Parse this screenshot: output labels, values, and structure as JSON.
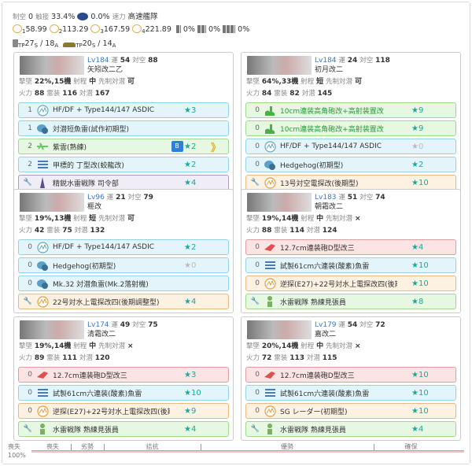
{
  "summary": {
    "air_label": "制空",
    "air": "0",
    "contact_label": "触接",
    "contact": "33.4%",
    "contact2": "0.0%",
    "speed_label": "速力",
    "speed": "高速艦隊",
    "los": [
      {
        "n": "1",
        "v": "58.99"
      },
      {
        "n": "2",
        "v": "113.29"
      },
      {
        "n": "3",
        "v": "167.59"
      },
      {
        "n": "4",
        "v": "221.89"
      }
    ],
    "drum": [
      "0%",
      "0%",
      "0%"
    ],
    "tp1": "27",
    "tp1s": "S",
    "tp1a": "18",
    "tp1b": "A",
    "tp2": "20",
    "tp2s": "S",
    "tp2a": "14",
    "tp2b": "A"
  },
  "labels": {
    "luck": "運",
    "aa": "対空",
    "shotdown": "撃墜",
    "range": "射程",
    "oasw": "先制対潜",
    "fp": "火力",
    "tp": "雷装",
    "asw": "対潜"
  },
  "ships": [
    {
      "lv": "Lv184",
      "luck": "54",
      "aa": "88",
      "name": "矢矧改二乙",
      "shot": "22%,15機",
      "range": "中",
      "oasw": "可",
      "fp": "88",
      "tp": "116",
      "asw": "167",
      "eq": [
        {
          "c": "1",
          "icon": "sonar-icon",
          "name": "HF/DF + Type144/147 ASDIC",
          "star": "★3",
          "t": "blue"
        },
        {
          "c": "1",
          "icon": "depth-charge-icon",
          "name": "対潜短魚雷(試作初期型)",
          "star": "",
          "t": "blue"
        },
        {
          "c": "2",
          "icon": "seaplane-icon",
          "name": "紫雲(熟練)",
          "star": "★2",
          "t": "green",
          "badge": "B",
          "prof": "》"
        },
        {
          "c": "2",
          "icon": "torpedo-icon",
          "name": "甲標的 丁型改(蛟龍改)",
          "star": "★2",
          "t": "blue"
        },
        {
          "c": "ex",
          "icon": "fleet-command-icon",
          "name": "精鋭水雷戦隊 司令部",
          "star": "★4",
          "t": "purple"
        }
      ]
    },
    {
      "lv": "Lv184",
      "luck": "24",
      "aa": "118",
      "name": "初月改二",
      "shot": "64%,33機",
      "range": "短",
      "oasw": "可",
      "fp": "84",
      "tp": "82",
      "asw": "145",
      "eq": [
        {
          "c": "0",
          "icon": "aa-gun-icon",
          "name": "10cm連装高角砲改+高射装置改",
          "star": "★9",
          "t": "green",
          "g": true
        },
        {
          "c": "0",
          "icon": "aa-gun-icon",
          "name": "10cm連装高角砲改+高射装置改",
          "star": "★9",
          "t": "green",
          "g": true
        },
        {
          "c": "0",
          "icon": "sonar-icon",
          "name": "HF/DF + Type144/147 ASDIC",
          "star": "★0",
          "t": "blue",
          "zero": true
        },
        {
          "c": "0",
          "icon": "depth-charge-icon",
          "name": "Hedgehog(初期型)",
          "star": "★2",
          "t": "blue"
        },
        {
          "c": "ex",
          "icon": "radar-icon",
          "name": "13号対空電探改(後期型)",
          "star": "★10",
          "t": "orange"
        }
      ]
    },
    {
      "lv": "Lv96",
      "luck": "21",
      "aa": "79",
      "name": "榧改",
      "shot": "19%,13機",
      "range": "短",
      "oasw": "可",
      "fp": "42",
      "tp": "75",
      "asw": "132",
      "eq": [
        {
          "c": "0",
          "icon": "sonar-icon",
          "name": "HF/DF + Type144/147 ASDIC",
          "star": "★2",
          "t": "blue"
        },
        {
          "c": "0",
          "icon": "depth-charge-icon",
          "name": "Hedgehog(初期型)",
          "star": "★0",
          "t": "blue",
          "zero": true
        },
        {
          "c": "0",
          "icon": "depth-charge-icon",
          "name": "Mk.32 対潜魚雷(Mk.2落射機)",
          "star": "",
          "t": "blue"
        },
        {
          "c": "ex",
          "icon": "radar-icon",
          "name": "22号対水上電探改四(後期調整型)",
          "star": "★4",
          "t": "orange"
        }
      ]
    },
    {
      "lv": "Lv183",
      "luck": "51",
      "aa": "74",
      "name": "朝霜改二",
      "shot": "19%,14機",
      "range": "中",
      "oasw": "×",
      "fp": "88",
      "tp": "114",
      "asw": "124",
      "eq": [
        {
          "c": "0",
          "icon": "main-gun-icon",
          "name": "12.7cm連装砲D型改三",
          "star": "★4",
          "t": "red"
        },
        {
          "c": "0",
          "icon": "torpedo-icon",
          "name": "試製61cm六連装(酸素)魚雷",
          "star": "★10",
          "t": "blue"
        },
        {
          "c": "0",
          "icon": "radar-icon",
          "name": "逆探(E27)+22号対水上電探改四(後期調整型)",
          "star": "★10",
          "t": "orange"
        },
        {
          "c": "ex",
          "icon": "lookout-icon",
          "name": "水雷戦隊 熟練見張員",
          "star": "★8",
          "t": "green"
        }
      ]
    },
    {
      "lv": "Lv174",
      "luck": "49",
      "aa": "75",
      "name": "清霜改二",
      "shot": "19%,14機",
      "range": "中",
      "oasw": "×",
      "fp": "89",
      "tp": "111",
      "asw": "120",
      "eq": [
        {
          "c": "0",
          "icon": "main-gun-icon",
          "name": "12.7cm連装砲D型改三",
          "star": "★3",
          "t": "red"
        },
        {
          "c": "0",
          "icon": "torpedo-icon",
          "name": "試製61cm六連装(酸素)魚雷",
          "star": "★10",
          "t": "blue"
        },
        {
          "c": "0",
          "icon": "radar-icon",
          "name": "逆探(E27)+22号対水上電探改四(後期調整型)",
          "star": "★9",
          "t": "orange"
        },
        {
          "c": "ex",
          "icon": "lookout-icon",
          "name": "水雷戦隊 熟練見張員",
          "star": "★4",
          "t": "green"
        }
      ]
    },
    {
      "lv": "Lv179",
      "luck": "54",
      "aa": "72",
      "name": "嘉改二",
      "shot": "20%,14機",
      "range": "中",
      "oasw": "×",
      "fp": "72",
      "tp": "113",
      "asw": "115",
      "eq": [
        {
          "c": "0",
          "icon": "main-gun-icon",
          "name": "12.7cm連装砲D型改三",
          "star": "★10",
          "t": "red"
        },
        {
          "c": "0",
          "icon": "torpedo-icon",
          "name": "試製61cm六連装(酸素)魚雷",
          "star": "★10",
          "t": "blue"
        },
        {
          "c": "0",
          "icon": "radar-icon",
          "name": "SG レーダー(初期型)",
          "star": "★10",
          "t": "orange"
        },
        {
          "c": "ex",
          "icon": "lookout-icon",
          "name": "水雷戦隊 熟練見張員",
          "star": "★4",
          "t": "green"
        }
      ]
    }
  ],
  "airbar": {
    "left": "喪失",
    "pct": "100%",
    "segments": [
      "喪失",
      "劣勢",
      "拮抗",
      "優勢",
      "確保"
    ]
  }
}
